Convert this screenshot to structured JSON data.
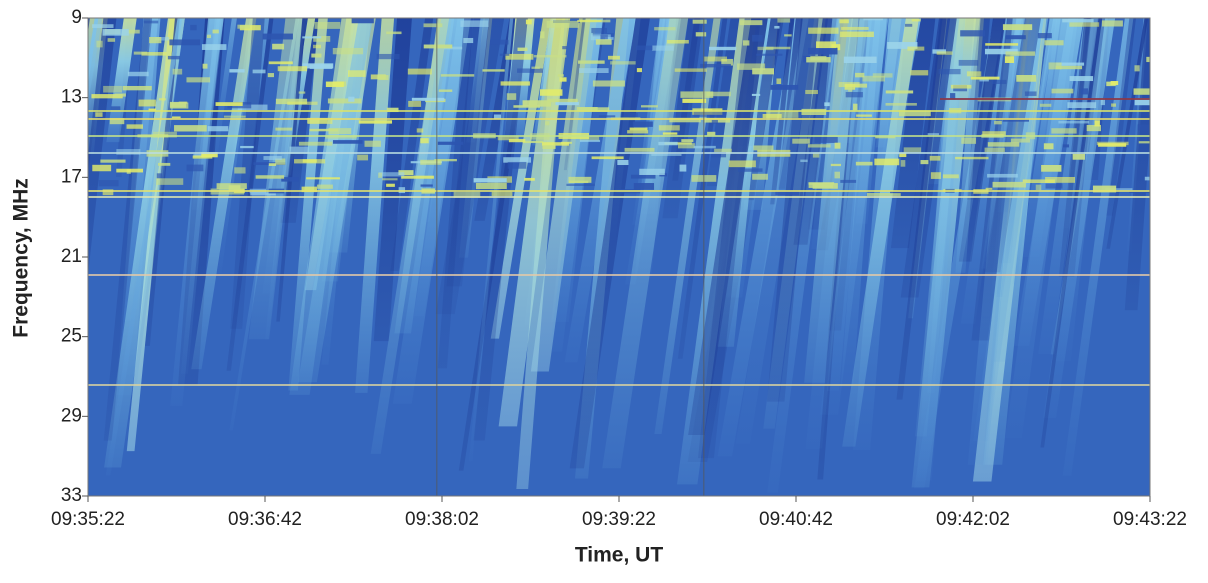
{
  "chart_data": {
    "type": "spectrogram",
    "xlabel": "Time, UT",
    "ylabel": "Frequency, MHz",
    "xlim": [
      "09:35:22",
      "09:43:22"
    ],
    "xticks": [
      "09:35:22",
      "09:36:42",
      "09:38:02",
      "09:39:22",
      "09:40:42",
      "09:42:02",
      "09:43:22"
    ],
    "ylim": [
      33,
      9
    ],
    "yticks": [
      9,
      13,
      17,
      21,
      25,
      29,
      33
    ]
  }
}
